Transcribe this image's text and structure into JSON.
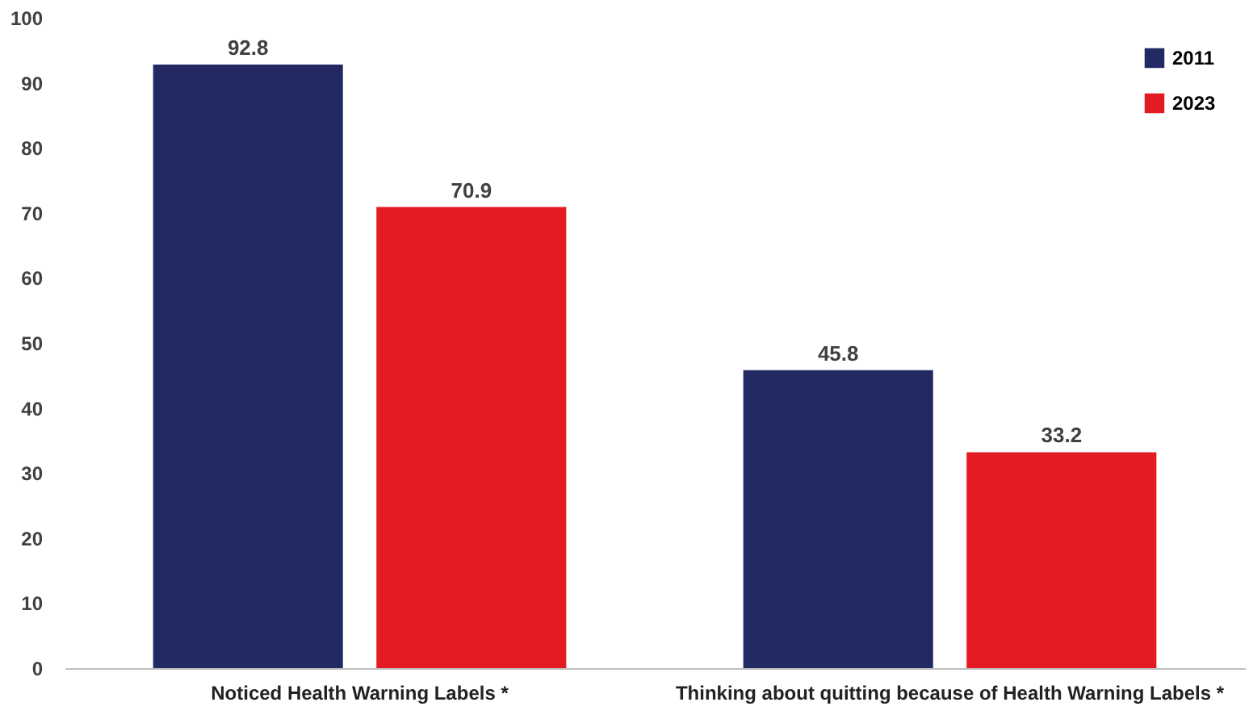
{
  "chart_data": {
    "type": "bar",
    "categories": [
      "Noticed Health Warning Labels *",
      "Thinking about quitting because of Health Warning Labels *"
    ],
    "series": [
      {
        "name": "2011",
        "color": "#232a63",
        "values": [
          92.8,
          45.8
        ]
      },
      {
        "name": "2023",
        "color": "#e31c23",
        "values": [
          70.9,
          33.2
        ]
      }
    ],
    "ylim": [
      0,
      100
    ],
    "yticks": [
      0,
      10,
      20,
      30,
      40,
      50,
      60,
      70,
      80,
      90,
      100
    ],
    "grid": false,
    "legend": "top right",
    "data_labels": true
  }
}
